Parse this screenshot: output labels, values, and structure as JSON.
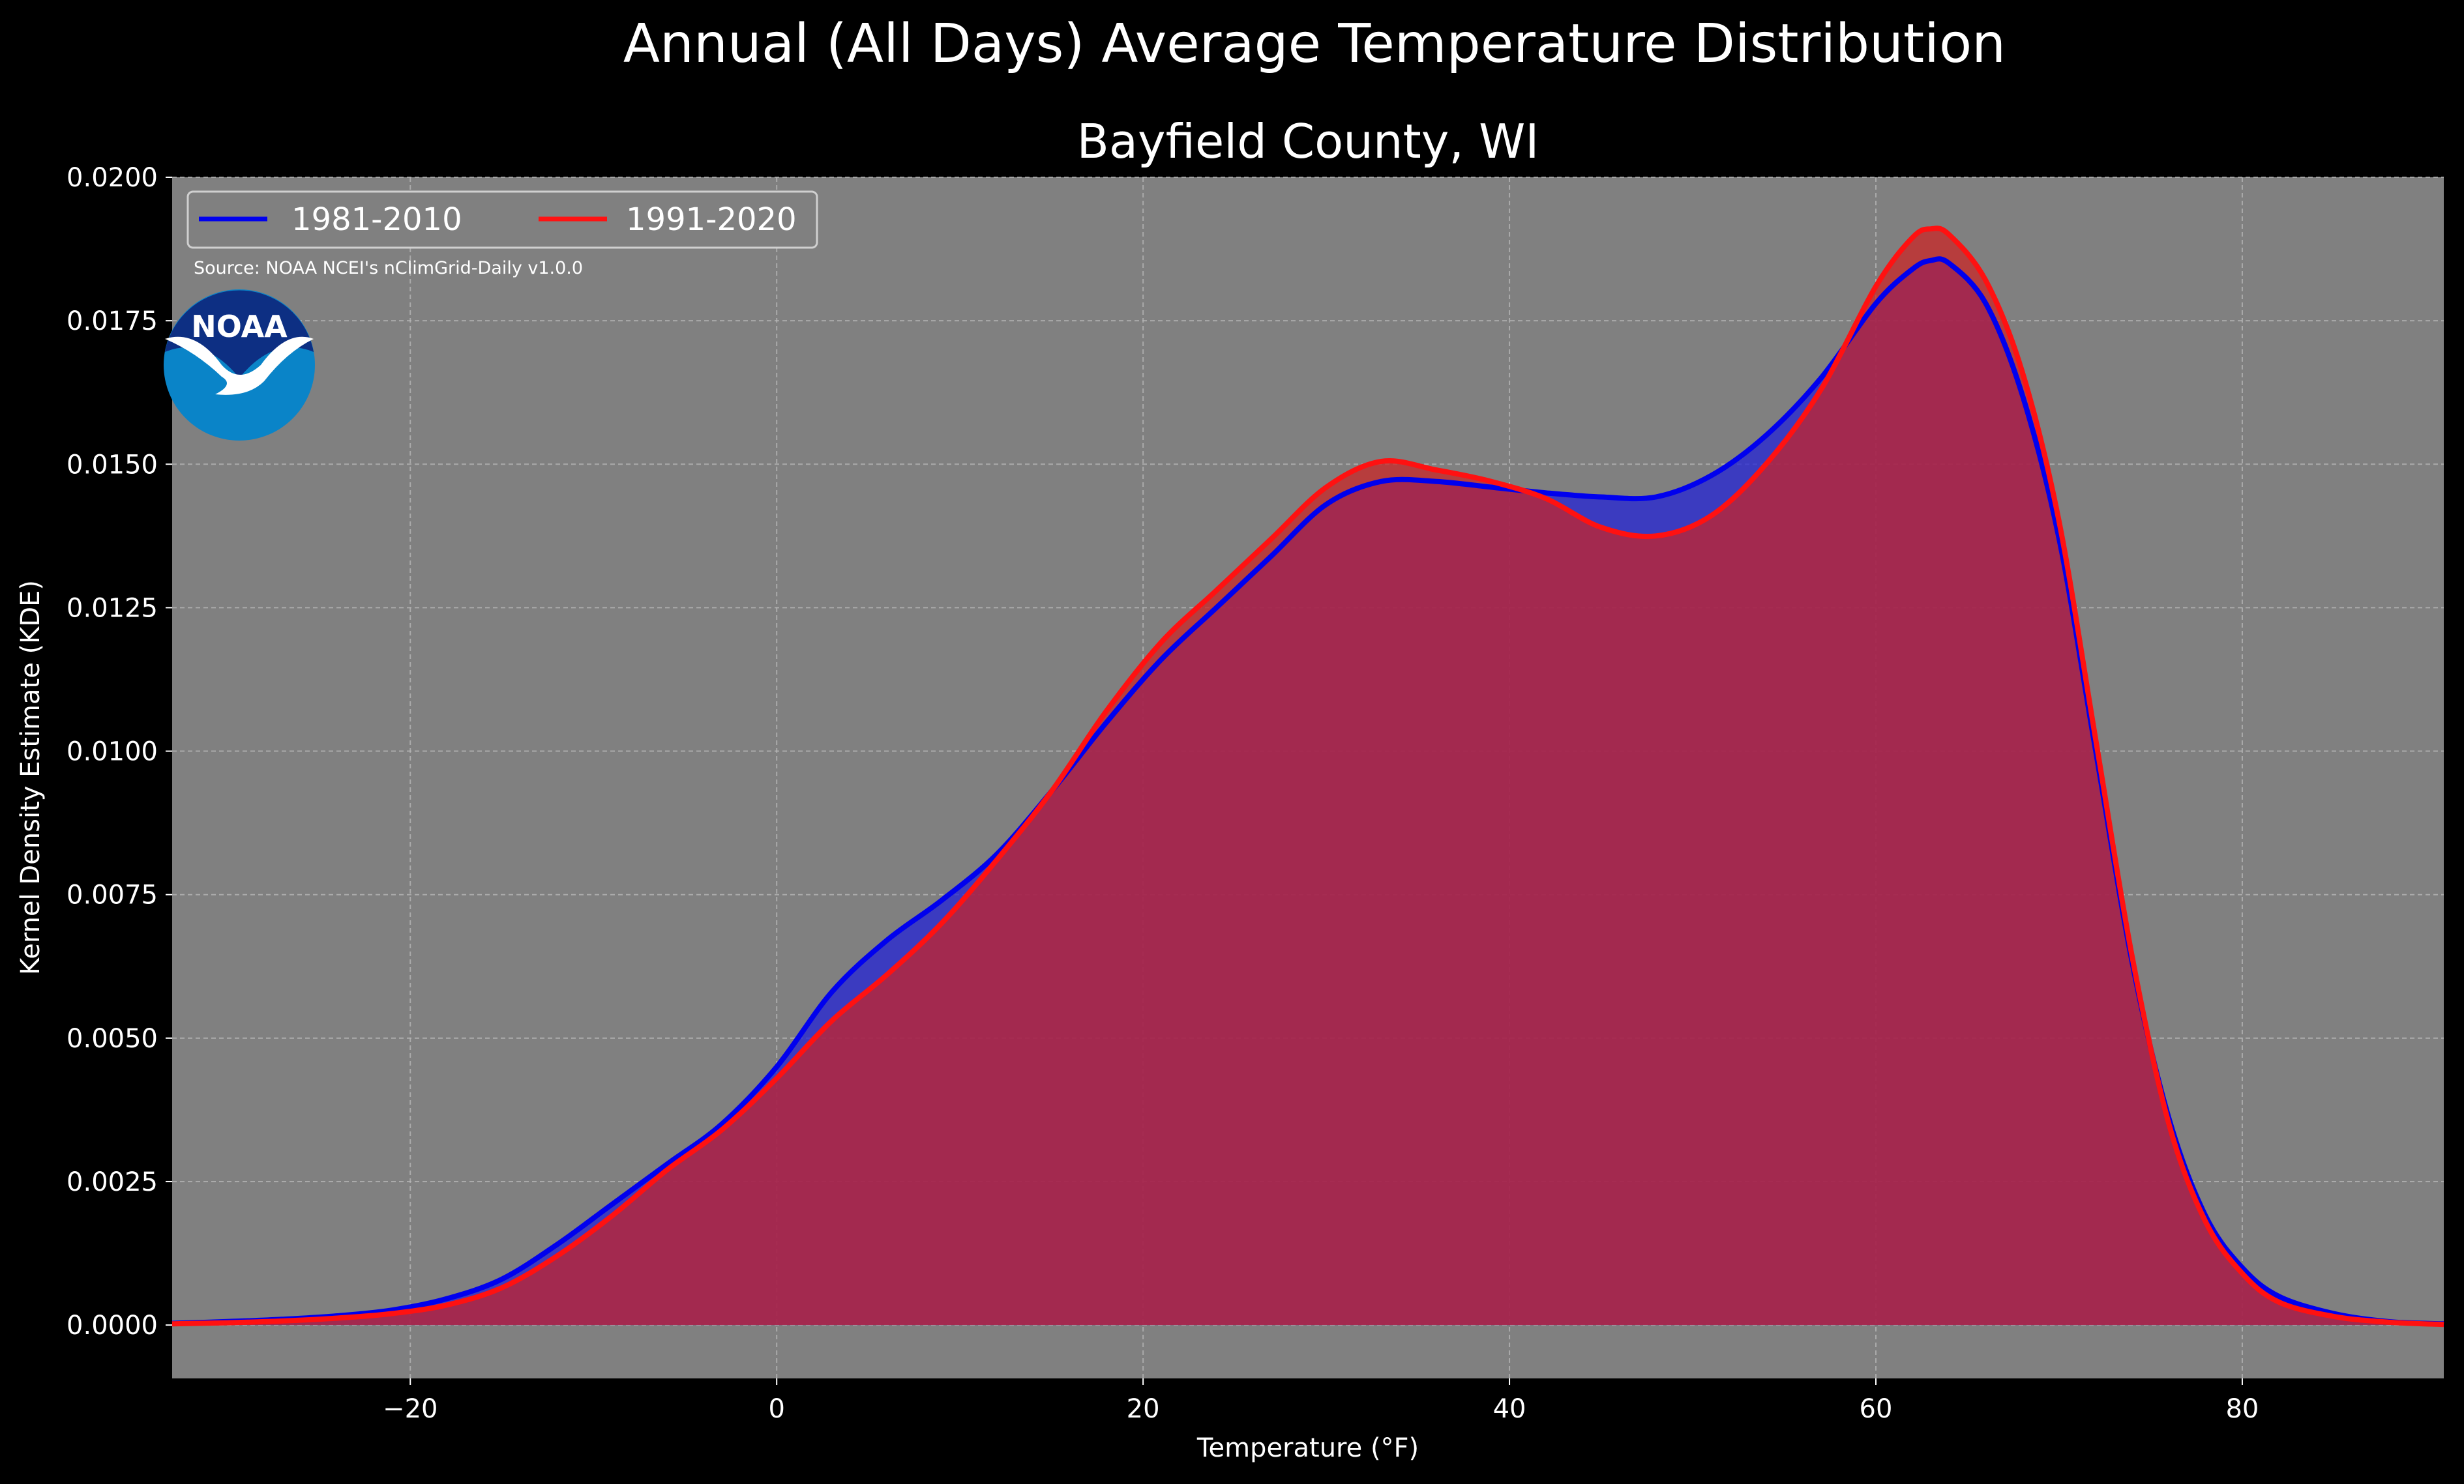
{
  "chart_data": {
    "type": "area",
    "suptitle": "Annual (All Days) Average Temperature Distribution",
    "title": "Bayfield County, WI",
    "xlabel": "Temperature ($^\\circ$F)",
    "xlabel_display": "Temperature (°F)",
    "ylabel": "Kernel Density Estimate (KDE)",
    "xlim": [
      -33,
      91
    ],
    "ylim": [
      -0.00093,
      0.02
    ],
    "xticks": [
      -20,
      0,
      20,
      40,
      60,
      80
    ],
    "xtick_labels": [
      "−20",
      "0",
      "20",
      "40",
      "60",
      "80"
    ],
    "yticks": [
      0.0,
      0.0025,
      0.005,
      0.0075,
      0.01,
      0.0125,
      0.015,
      0.0175,
      0.02
    ],
    "ytick_labels": [
      "0.0000",
      "0.0025",
      "0.0050",
      "0.0075",
      "0.0100",
      "0.0125",
      "0.0150",
      "0.0175",
      "0.0200"
    ],
    "grid": true,
    "legend_position": "top-left",
    "annotation": "Source: NOAA NCEI's nClimGrid-Daily v1.0.0",
    "logo_text": "NOAA",
    "x": [
      -33,
      -30,
      -27,
      -24,
      -21,
      -18,
      -15,
      -12,
      -9,
      -6,
      -3,
      0,
      3,
      6,
      9,
      12,
      15,
      18,
      21,
      24,
      27,
      30,
      33,
      36,
      39,
      42,
      45,
      48,
      51,
      54,
      57,
      60,
      62,
      63,
      64,
      66,
      68,
      70,
      72,
      74,
      76,
      78,
      80,
      82,
      85,
      88,
      91
    ],
    "series": [
      {
        "name": "1981-2010",
        "color": "#0000ee",
        "fill": "#2020d8",
        "values": [
          3e-05,
          6e-05,
          0.0001,
          0.00016,
          0.00026,
          0.00046,
          0.0008,
          0.0014,
          0.0021,
          0.0028,
          0.0035,
          0.0045,
          0.0058,
          0.0067,
          0.0074,
          0.0082,
          0.0093,
          0.0105,
          0.0116,
          0.0125,
          0.0134,
          0.0143,
          0.0147,
          0.0147,
          0.0146,
          0.0145,
          0.01443,
          0.01443,
          0.0148,
          0.0155,
          0.0165,
          0.0178,
          0.0184,
          0.01855,
          0.0185,
          0.0178,
          0.0162,
          0.0137,
          0.01,
          0.0063,
          0.0036,
          0.0019,
          0.001,
          0.0005,
          0.0002,
          6e-05,
          2e-05
        ]
      },
      {
        "name": "1991-2020",
        "color": "#ff1111",
        "fill": "#cc2222",
        "values": [
          2e-05,
          4e-05,
          7e-05,
          0.00012,
          0.0002,
          0.00035,
          0.00065,
          0.0012,
          0.0019,
          0.0027,
          0.0034,
          0.0043,
          0.0053,
          0.0061,
          0.007,
          0.0081,
          0.0093,
          0.0107,
          0.0119,
          0.0128,
          0.0137,
          0.0146,
          0.01505,
          0.0149,
          0.0147,
          0.0144,
          0.0139,
          0.01375,
          0.0141,
          0.015,
          0.0163,
          0.0181,
          0.01895,
          0.0191,
          0.019,
          0.0182,
          0.0166,
          0.014,
          0.0102,
          0.0064,
          0.0035,
          0.0018,
          0.0009,
          0.0004,
          0.00015,
          5e-05,
          1e-05
        ]
      }
    ]
  }
}
